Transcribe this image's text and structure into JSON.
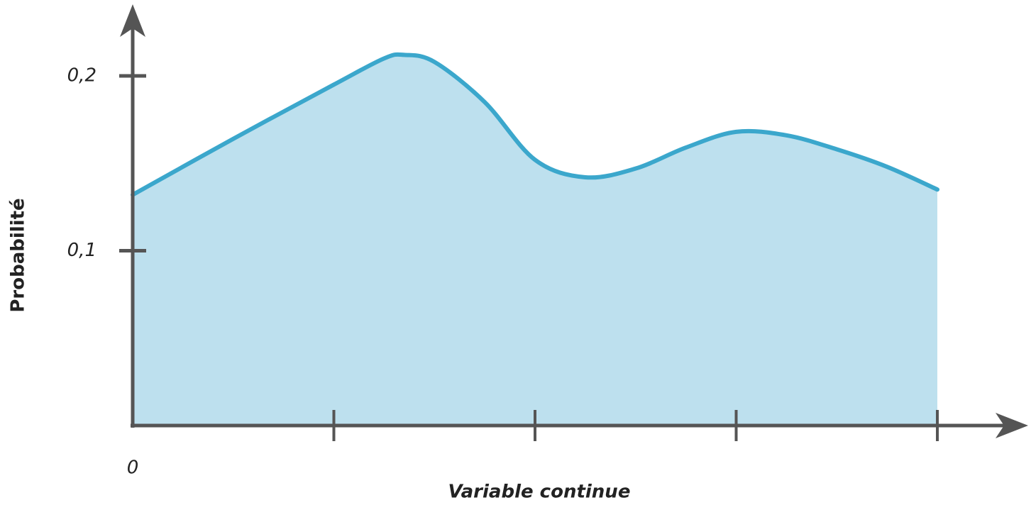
{
  "chart_data": {
    "type": "area",
    "x_label": "Variable continue",
    "y_label": "Probabilité",
    "x": [
      0,
      0.5,
      1,
      1.25,
      1.35,
      1.5,
      1.75,
      2,
      2.25,
      2.5,
      2.75,
      3,
      3.25,
      3.5,
      3.75,
      4
    ],
    "values": [
      0.132,
      0.164,
      0.195,
      0.21,
      0.212,
      0.208,
      0.185,
      0.152,
      0.142,
      0.147,
      0.159,
      0.168,
      0.166,
      0.158,
      0.148,
      0.135
    ],
    "color": "#3ba7cc",
    "fill": "#bde0ee",
    "xlim": [
      0,
      4.42
    ],
    "ylim": [
      0,
      0.24
    ],
    "xticks": [
      0,
      {
        "value": 1,
        "label": null
      },
      {
        "value": 2,
        "label": null
      },
      {
        "value": 3,
        "label": null
      },
      {
        "value": 4,
        "label": null
      }
    ],
    "yticks": [
      {
        "value": 0.1,
        "label": "0,1"
      },
      {
        "value": 0.2,
        "label": "0,2"
      }
    ]
  }
}
